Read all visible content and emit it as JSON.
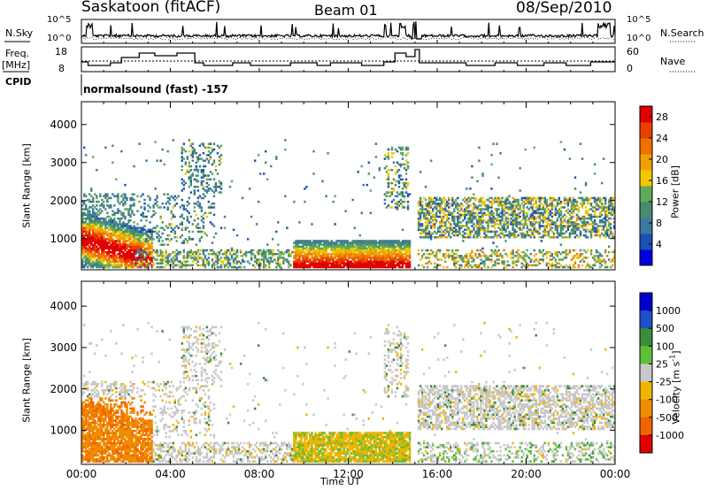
{
  "header": {
    "station": "Saskatoon (fitACF)",
    "beam": "Beam 01",
    "date": "08/Sep/2010"
  },
  "top_panels": {
    "nsky_label": "N.Sky",
    "nsky_ticks": [
      "10^5",
      "10^0"
    ],
    "nsearch_label": "N.Search",
    "nsearch_ticks": [
      "10^5",
      "10^0"
    ],
    "freq_label": "Freq.",
    "freq_unit": "[MHz]",
    "freq_ticks": [
      "18",
      "8"
    ],
    "nave_label": "Nave",
    "nave_ticks": [
      "60",
      "0"
    ],
    "cpid_label": "CPID",
    "cpid_text": "normalsound (fast) -157"
  },
  "colors": {
    "line": "#000000",
    "power_scale": [
      "#0000dd",
      "#1e50b4",
      "#3c78a0",
      "#4a8a6e",
      "#5faa5a",
      "#f0c800",
      "#f0a000",
      "#f07000",
      "#e84000",
      "#e00000"
    ],
    "velocity_scale": [
      "#0000cc",
      "#2050c8",
      "#3c8c3c",
      "#5fbe3c",
      "#c8c8c8",
      "#f0b400",
      "#f08c00",
      "#f06400",
      "#e00000"
    ]
  },
  "chart_data": [
    {
      "type": "heatmap",
      "name": "power",
      "ylabel": "Slant Range [km]",
      "y_ticks": [
        1000,
        2000,
        3000,
        4000
      ],
      "ylim": [
        180,
        4600
      ],
      "x_ticks": [
        "00:00",
        "04:00",
        "08:00",
        "12:00",
        "16:00",
        "20:00",
        "00:00"
      ],
      "xlim_hours": [
        0,
        24
      ],
      "colorbar_label": "Power [dB]",
      "colorbar_ticks": [
        4,
        8,
        12,
        16,
        20,
        24,
        28
      ],
      "colorbar_range": [
        0,
        30
      ]
    },
    {
      "type": "heatmap",
      "name": "velocity",
      "ylabel": "Slant Range [km]",
      "y_ticks": [
        1000,
        2000,
        3000,
        4000
      ],
      "ylim": [
        180,
        4600
      ],
      "x_ticks": [
        "00:00",
        "04:00",
        "08:00",
        "12:00",
        "16:00",
        "20:00",
        "00:00"
      ],
      "xlabel": "Time UT",
      "colorbar_label": "Velocity [m s^-1]",
      "colorbar_ticks": [
        "1000",
        "500",
        "100",
        "25",
        "-25",
        "-100",
        "-500",
        "-1000"
      ]
    }
  ]
}
